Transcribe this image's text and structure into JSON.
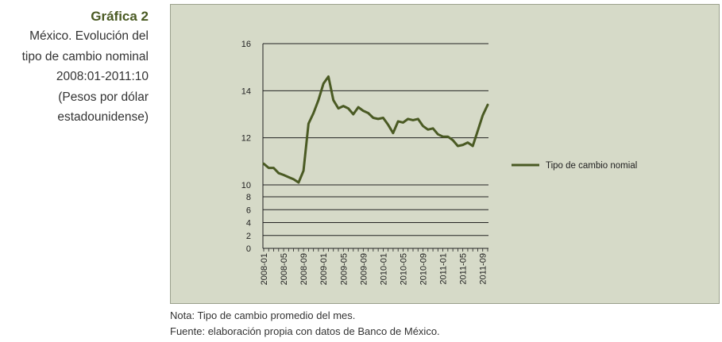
{
  "caption": {
    "figure_label": "Gráfica 2",
    "lines": [
      "México. Evolución del",
      "tipo de cambio nominal",
      "2008:01-2011:10",
      "(Pesos por dólar",
      "estadounidense)"
    ]
  },
  "notes": {
    "nota": "Nota: Tipo de cambio promedio del mes.",
    "fuente": "Fuente: elaboración propia con datos de Banco de México."
  },
  "colors": {
    "line": "#4a5a23",
    "panel_background": "#d6dac8",
    "grid": "#222222",
    "title": "#4a5a23"
  },
  "chart_data": {
    "type": "line",
    "title": "",
    "xlabel": "",
    "ylabel": "",
    "y_axis": {
      "breaks": [
        {
          "from": 0,
          "to": 8,
          "ticks": [
            0,
            2,
            4,
            6,
            8
          ]
        },
        {
          "from": 10,
          "to": 16,
          "ticks": [
            10,
            12,
            14,
            16
          ]
        }
      ],
      "tick_labels": [
        "0",
        "2",
        "4",
        "6",
        "8",
        "10",
        "12",
        "14",
        "16"
      ]
    },
    "x_tick_labels": [
      "2008-01",
      "2008-05",
      "2008-09",
      "2009-01",
      "2009-05",
      "2009-09",
      "2010-01",
      "2010-05",
      "2010-09",
      "2011-01",
      "2011-05",
      "2011-09"
    ],
    "grid": true,
    "legend_position": "right",
    "series": [
      {
        "name": "Tipo de cambio nomial",
        "x": [
          "2008-01",
          "2008-02",
          "2008-03",
          "2008-04",
          "2008-05",
          "2008-06",
          "2008-07",
          "2008-08",
          "2008-09",
          "2008-10",
          "2008-11",
          "2008-12",
          "2009-01",
          "2009-02",
          "2009-03",
          "2009-04",
          "2009-05",
          "2009-06",
          "2009-07",
          "2009-08",
          "2009-09",
          "2009-10",
          "2009-11",
          "2009-12",
          "2010-01",
          "2010-02",
          "2010-03",
          "2010-04",
          "2010-05",
          "2010-06",
          "2010-07",
          "2010-08",
          "2010-09",
          "2010-10",
          "2010-11",
          "2010-12",
          "2011-01",
          "2011-02",
          "2011-03",
          "2011-04",
          "2011-05",
          "2011-06",
          "2011-07",
          "2011-08",
          "2011-09",
          "2011-10"
        ],
        "values": [
          10.9,
          10.72,
          10.72,
          10.5,
          10.42,
          10.33,
          10.24,
          10.1,
          10.6,
          12.6,
          13.05,
          13.6,
          14.3,
          14.6,
          13.6,
          13.25,
          13.35,
          13.25,
          13.0,
          13.3,
          13.15,
          13.05,
          12.85,
          12.8,
          12.85,
          12.55,
          12.2,
          12.7,
          12.65,
          12.8,
          12.75,
          12.8,
          12.5,
          12.35,
          12.4,
          12.15,
          12.05,
          12.05,
          11.9,
          11.65,
          11.7,
          11.8,
          11.65,
          12.3,
          12.95,
          13.4
        ]
      }
    ]
  }
}
